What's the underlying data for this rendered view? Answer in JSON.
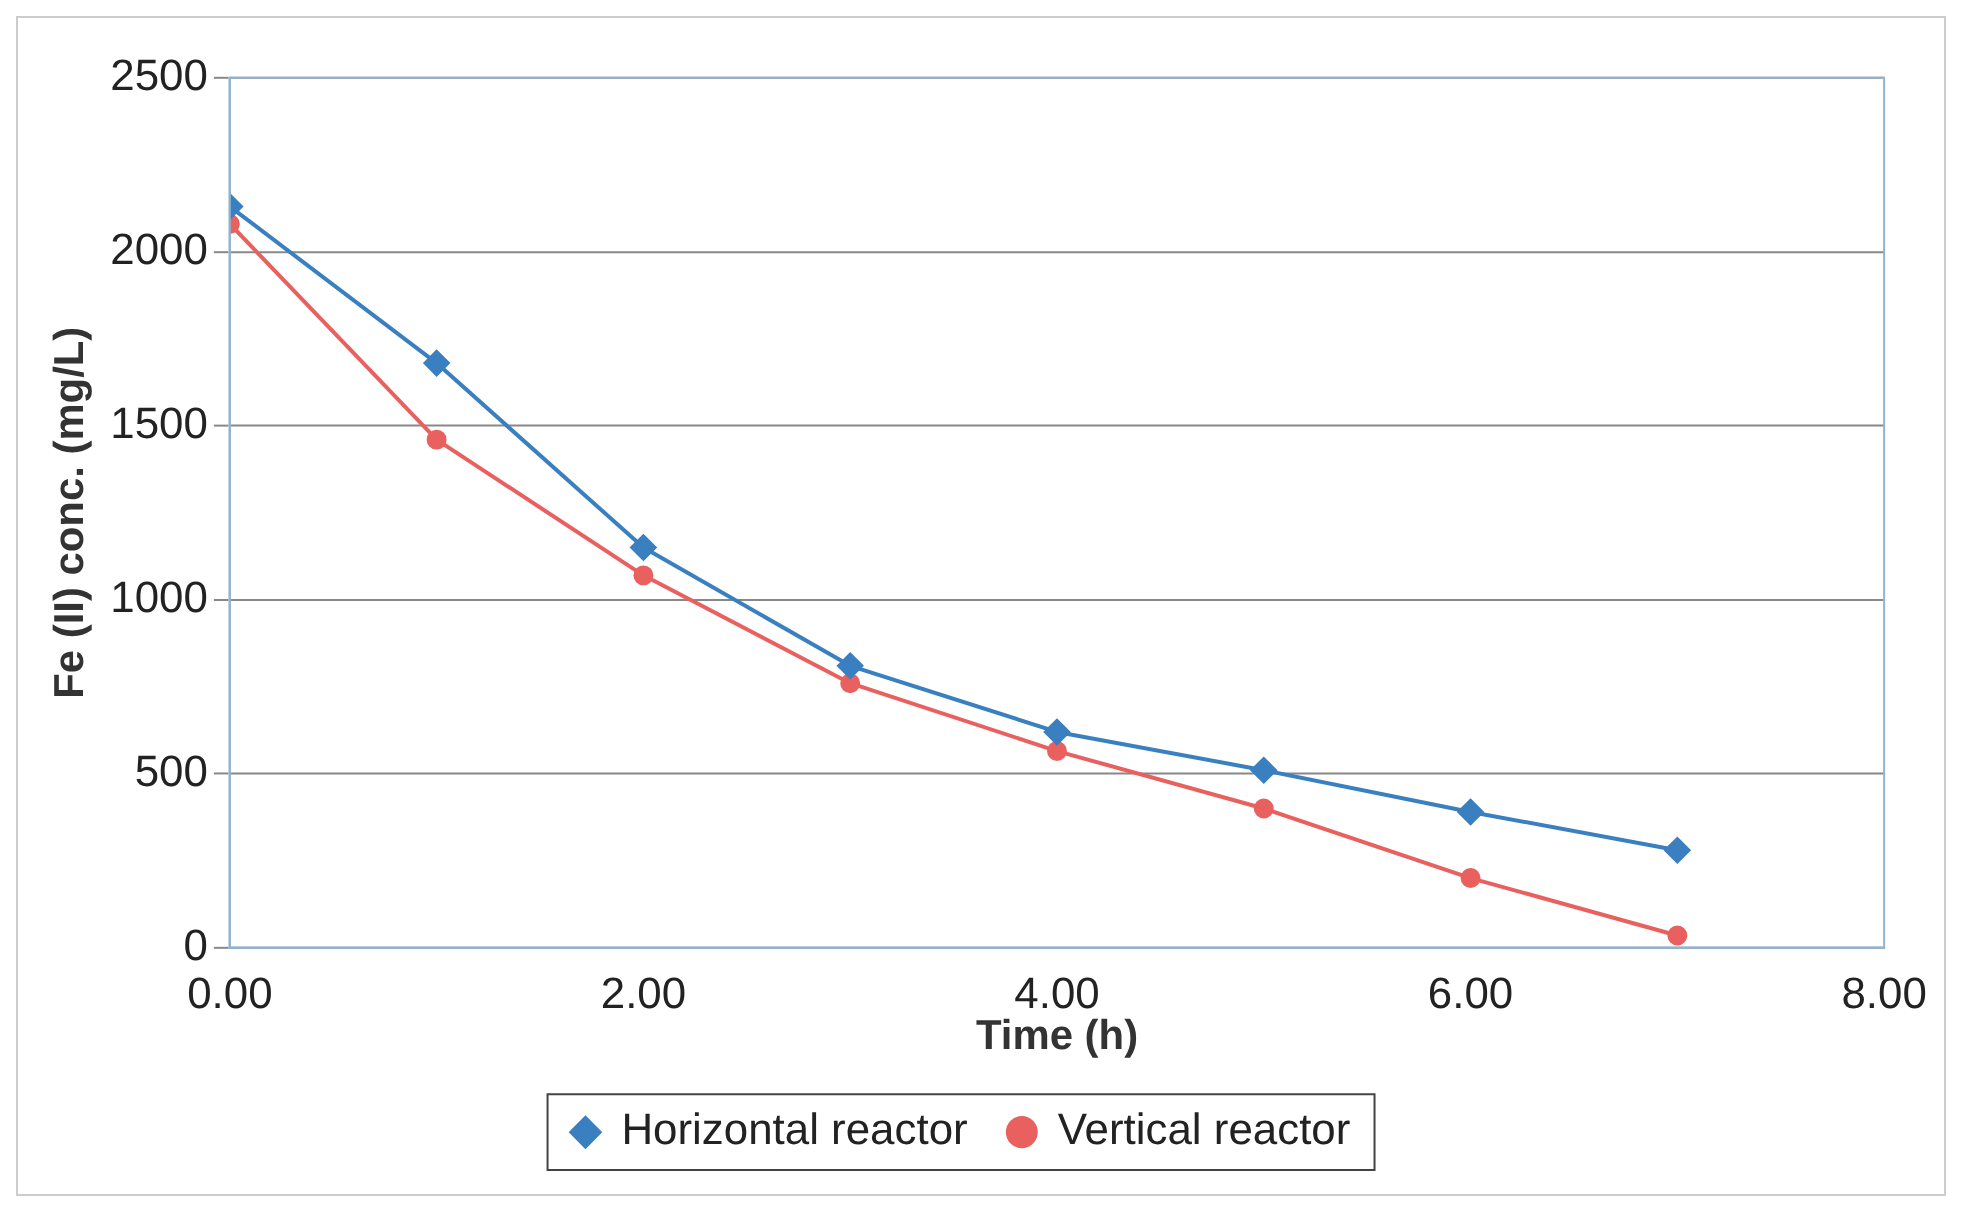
{
  "chart_data": {
    "type": "line",
    "xlabel": "Time (h)",
    "ylabel": "Fe (II) conc. (mg/L)",
    "x": [
      0,
      1,
      2,
      3,
      4,
      5,
      6,
      7
    ],
    "series": [
      {
        "name": "Horizontal reactor",
        "color": "#3a7fbf",
        "marker": "diamond",
        "values": [
          2130,
          1680,
          1150,
          810,
          620,
          510,
          390,
          280
        ]
      },
      {
        "name": "Vertical reactor",
        "color": "#e8615f",
        "marker": "circle",
        "values": [
          2080,
          1460,
          1070,
          760,
          565,
          400,
          200,
          35
        ]
      }
    ],
    "xlim": [
      0,
      8
    ],
    "xticks": [
      {
        "value": 0,
        "label": "0.00"
      },
      {
        "value": 2,
        "label": "2.00"
      },
      {
        "value": 4,
        "label": "4.00"
      },
      {
        "value": 6,
        "label": "6.00"
      },
      {
        "value": 8,
        "label": "8.00"
      }
    ],
    "ylim": [
      0,
      2500
    ],
    "yticks": [
      0,
      500,
      1000,
      1500,
      2000,
      2500
    ],
    "grid": "y",
    "legend": "bottom",
    "line_style": "solid"
  }
}
